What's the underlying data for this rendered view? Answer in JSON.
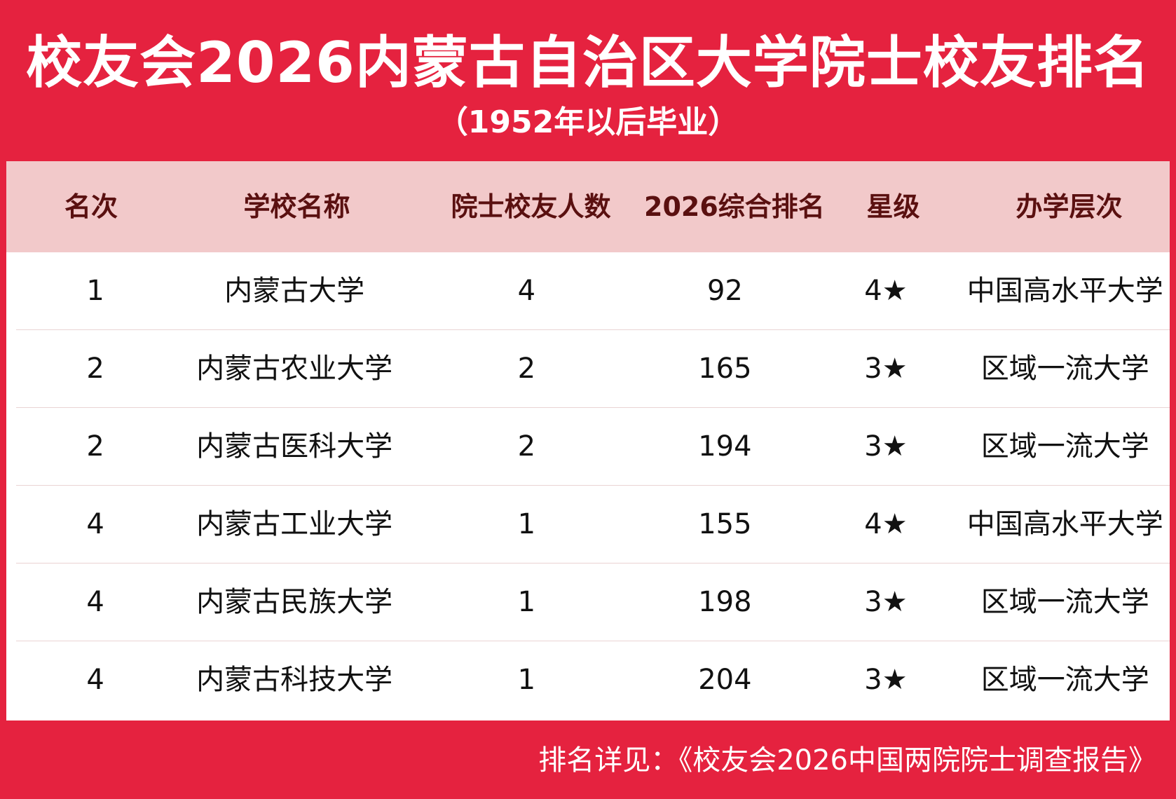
{
  "title": "校友会2026内蒙古自治区大学院士校友排名",
  "subtitle": "（1952年以后毕业）",
  "table": {
    "headers": [
      "名次",
      "学校名称",
      "院士校友人数",
      "2026综合排名",
      "星级",
      "办学层次"
    ],
    "rows": [
      {
        "rank": "1",
        "school": "内蒙古大学",
        "count": "4",
        "overall": "92",
        "stars": "4★",
        "level": "中国高水平大学"
      },
      {
        "rank": "2",
        "school": "内蒙古农业大学",
        "count": "2",
        "overall": "165",
        "stars": "3★",
        "level": "区域一流大学"
      },
      {
        "rank": "2",
        "school": "内蒙古医科大学",
        "count": "2",
        "overall": "194",
        "stars": "3★",
        "level": "区域一流大学"
      },
      {
        "rank": "4",
        "school": "内蒙古工业大学",
        "count": "1",
        "overall": "155",
        "stars": "4★",
        "level": "中国高水平大学"
      },
      {
        "rank": "4",
        "school": "内蒙古民族大学",
        "count": "1",
        "overall": "198",
        "stars": "3★",
        "level": "区域一流大学"
      },
      {
        "rank": "4",
        "school": "内蒙古科技大学",
        "count": "1",
        "overall": "204",
        "stars": "3★",
        "level": "区域一流大学"
      }
    ]
  },
  "footer": "排名详见：《校友会2026中国两院院士调查报告》",
  "colors": {
    "background": "#e5223f",
    "header_bg": "#f2c9ca",
    "header_text": "#5a1010",
    "body_text": "#111111"
  }
}
